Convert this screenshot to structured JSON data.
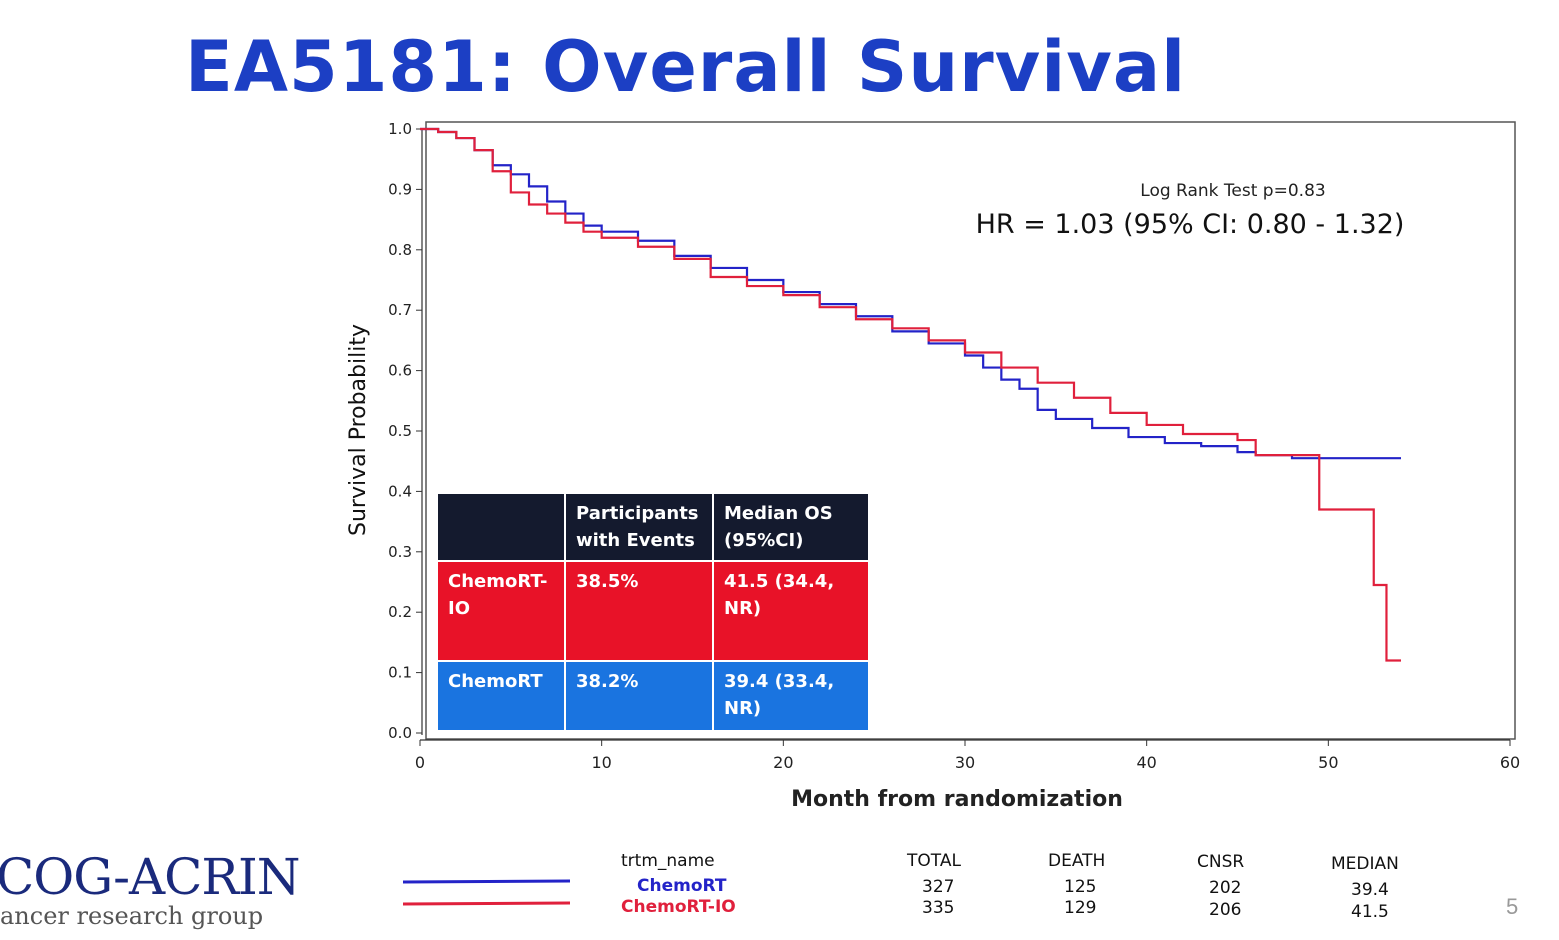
{
  "slide": {
    "title": "EA5181: Overall Survival",
    "page_number": "5",
    "logo_text": "COG-ACRIN",
    "logo_subtext": "ancer research group"
  },
  "annotations": {
    "log_rank": "Log Rank Test p=0.83",
    "hr": "HR = 1.03 (95% CI: 0.80 - 1.32)"
  },
  "inset_table": {
    "headers": [
      "",
      "Participants with Events",
      "Median OS (95%CI)"
    ],
    "rows": [
      {
        "name": "ChemoRT-IO",
        "events": "38.5%",
        "median_os": "41.5 (34.4, NR)"
      },
      {
        "name": "ChemoRT",
        "events": "38.2%",
        "median_os": "39.4 (33.4, NR)"
      }
    ]
  },
  "stats_table": {
    "headers": {
      "name": "trtm_name",
      "total": "TOTAL",
      "death": "DEATH",
      "cnsr": "CNSR",
      "median": "MEDIAN"
    },
    "rows": [
      {
        "name": "ChemoRT",
        "total": "327",
        "death": "125",
        "cnsr": "202",
        "median": "39.4",
        "color": "#2323c8"
      },
      {
        "name": "ChemoRT-IO",
        "total": "335",
        "death": "129",
        "cnsr": "206",
        "median": "41.5",
        "color": "#e0203c"
      }
    ]
  },
  "chart_data": {
    "type": "line",
    "title": "",
    "xlabel": "Month from randomization",
    "ylabel": "Survival Probability",
    "xlim": [
      0,
      60
    ],
    "ylim": [
      0,
      1.0
    ],
    "xticks": [
      "0",
      "10",
      "20",
      "30",
      "40",
      "50",
      "60"
    ],
    "yticks": [
      "0.0",
      "0.1",
      "0.2",
      "0.3",
      "0.4",
      "0.5",
      "0.6",
      "0.7",
      "0.8",
      "0.9",
      "1.0"
    ],
    "step": true,
    "grid": false,
    "series": [
      {
        "name": "ChemoRT",
        "color": "#2323c8",
        "x": [
          0,
          1,
          2,
          3,
          4,
          5,
          6,
          7,
          8,
          9,
          10,
          12,
          14,
          16,
          18,
          20,
          22,
          24,
          26,
          28,
          30,
          31,
          32,
          33,
          34,
          35,
          37,
          39,
          41,
          43,
          45,
          46,
          48,
          50,
          54
        ],
        "y": [
          1.0,
          0.995,
          0.985,
          0.965,
          0.94,
          0.925,
          0.905,
          0.88,
          0.86,
          0.84,
          0.83,
          0.815,
          0.79,
          0.77,
          0.75,
          0.73,
          0.71,
          0.69,
          0.665,
          0.645,
          0.625,
          0.605,
          0.585,
          0.57,
          0.535,
          0.52,
          0.505,
          0.49,
          0.48,
          0.475,
          0.465,
          0.46,
          0.455,
          0.455,
          0.455
        ]
      },
      {
        "name": "ChemoRT-IO",
        "color": "#e0203c",
        "x": [
          0,
          1,
          2,
          3,
          4,
          5,
          6,
          7,
          8,
          9,
          10,
          12,
          14,
          16,
          18,
          20,
          22,
          24,
          26,
          28,
          30,
          32,
          34,
          36,
          38,
          40,
          42,
          45,
          46,
          48,
          49.5,
          52.5,
          53.2,
          54
        ],
        "y": [
          1.0,
          0.995,
          0.985,
          0.965,
          0.93,
          0.895,
          0.875,
          0.86,
          0.845,
          0.83,
          0.82,
          0.805,
          0.785,
          0.755,
          0.74,
          0.725,
          0.705,
          0.685,
          0.67,
          0.65,
          0.63,
          0.605,
          0.58,
          0.555,
          0.53,
          0.51,
          0.495,
          0.485,
          0.46,
          0.46,
          0.37,
          0.245,
          0.12,
          0.12
        ]
      }
    ]
  }
}
